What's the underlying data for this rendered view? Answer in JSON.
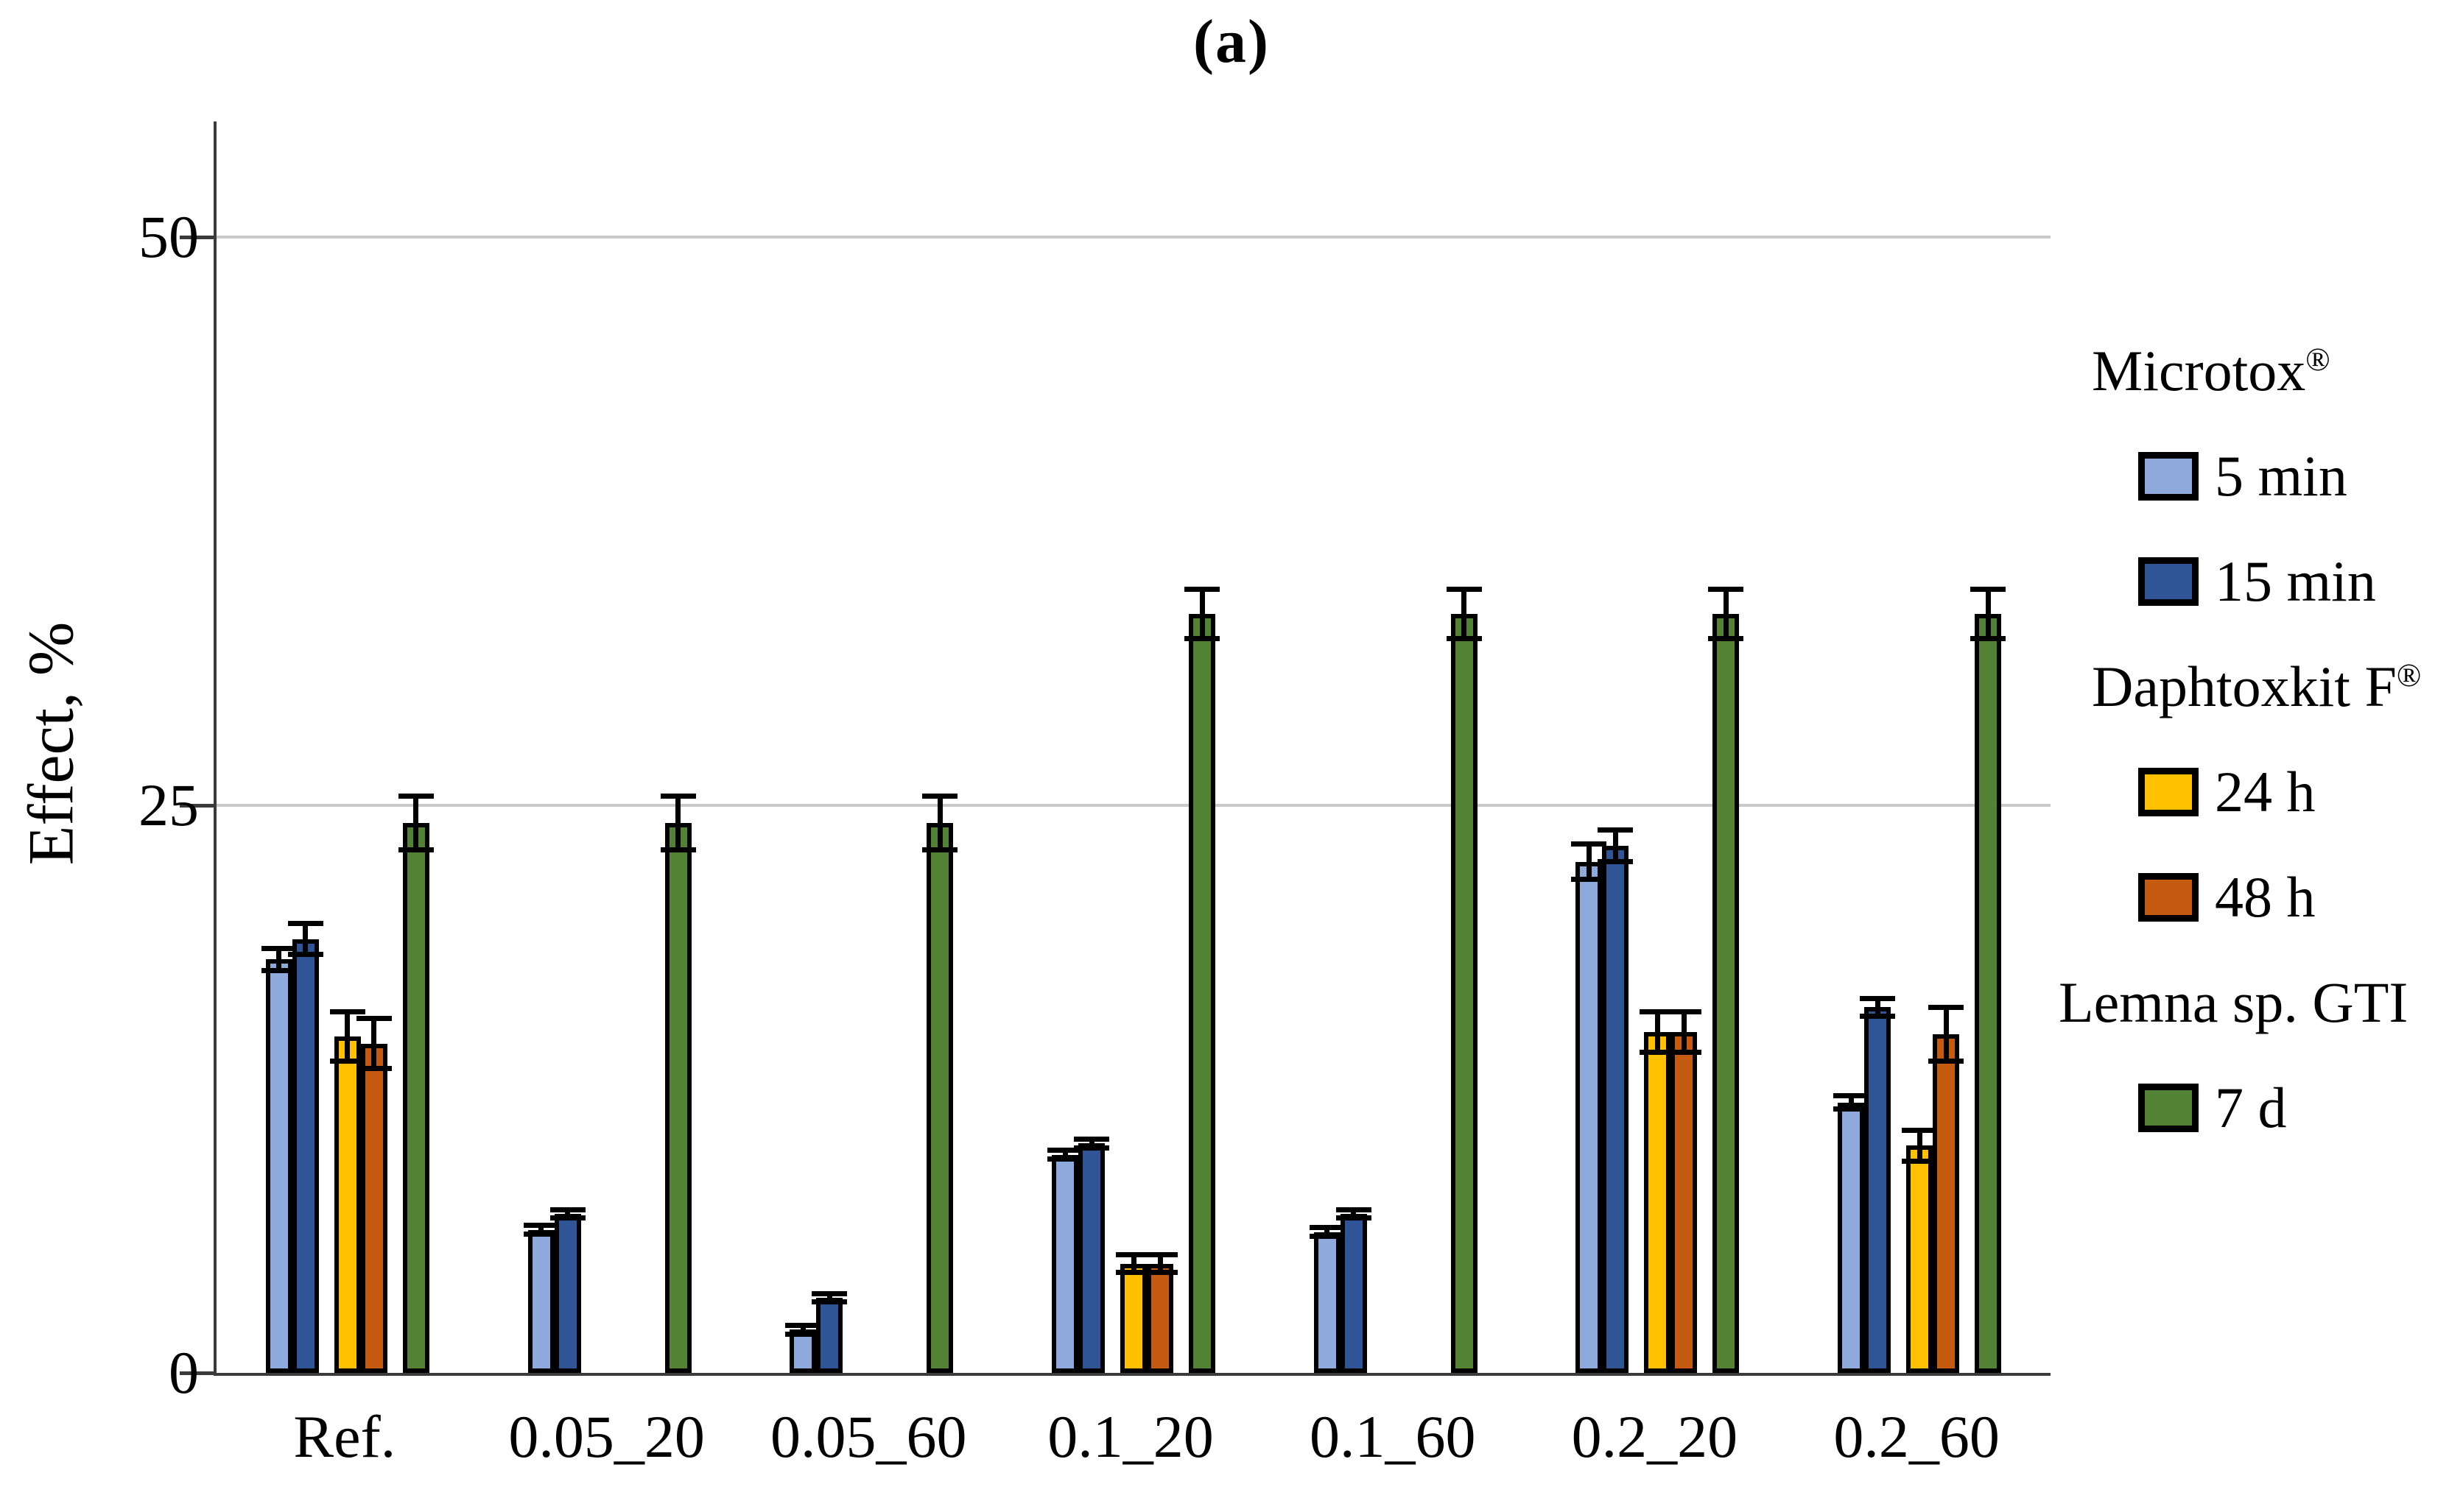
{
  "chart_data": {
    "type": "bar",
    "title": "(a)",
    "ylabel": "Effect, %",
    "ylim": [
      0,
      55
    ],
    "yticks": [
      {
        "label": "0",
        "value": 0
      },
      {
        "label": "25",
        "value": 25
      },
      {
        "label": "50",
        "value": 50
      }
    ],
    "gridlines": [
      25,
      50
    ],
    "grid": true,
    "legend_position": "right",
    "categories": [
      "Ref.",
      "0.05_20",
      "0.05_60",
      "0.1_20",
      "0.1_60",
      "0.2_20",
      "0.2_60"
    ],
    "series": [
      {
        "name": "5 min",
        "assay": "Microtox",
        "color": "#8EA9DB",
        "values": [
          18.2,
          6.3,
          1.9,
          9.6,
          6.2,
          22.5,
          11.9
        ],
        "errors": [
          0.6,
          0.3,
          0.3,
          0.3,
          0.3,
          0.9,
          0.4
        ]
      },
      {
        "name": "15 min",
        "assay": "Microtox",
        "color": "#2F5597",
        "values": [
          19.1,
          7.0,
          3.3,
          10.1,
          7.0,
          23.2,
          16.1
        ],
        "errors": [
          0.8,
          0.3,
          0.3,
          0.3,
          0.3,
          0.8,
          0.5
        ]
      },
      {
        "name": "24 h",
        "assay": "Daphtoxkit F",
        "color": "#FFC000",
        "values": [
          14.8,
          null,
          null,
          4.8,
          null,
          15.0,
          10.0
        ],
        "errors": [
          1.2,
          null,
          null,
          0.5,
          null,
          1.0,
          0.8
        ]
      },
      {
        "name": "48 h",
        "assay": "Daphtoxkit F",
        "color": "#C55A11",
        "values": [
          14.5,
          null,
          null,
          4.8,
          null,
          15.0,
          14.9
        ],
        "errors": [
          1.2,
          null,
          null,
          0.5,
          null,
          1.0,
          1.3
        ]
      },
      {
        "name": "7 d",
        "assay": "Lemna sp. GTI",
        "color": "#548235",
        "values": [
          24.2,
          24.2,
          24.2,
          33.4,
          33.4,
          33.4,
          33.4
        ],
        "errors": [
          1.3,
          1.3,
          1.3,
          1.2,
          1.2,
          1.2,
          1.2
        ]
      }
    ]
  },
  "legend": {
    "sections": [
      {
        "header": "Microtox",
        "mark": "®",
        "items": [
          {
            "label": "5 min",
            "color": "#8EA9DB"
          },
          {
            "label": "15 min",
            "color": "#2F5597"
          }
        ]
      },
      {
        "header": "Daphtoxkit F",
        "mark": "®",
        "items": [
          {
            "label": "24 h",
            "color": "#FFC000"
          },
          {
            "label": "48 h",
            "color": "#C55A11"
          }
        ]
      },
      {
        "header": "Lemna sp. GTI",
        "mark": "",
        "items": [
          {
            "label": "7 d",
            "color": "#548235"
          }
        ]
      }
    ]
  },
  "style": {
    "gridline_color": "#c9c9c9",
    "axis_color": "#3b3b3b",
    "bar_border_color": "#000000",
    "background": "#ffffff"
  }
}
